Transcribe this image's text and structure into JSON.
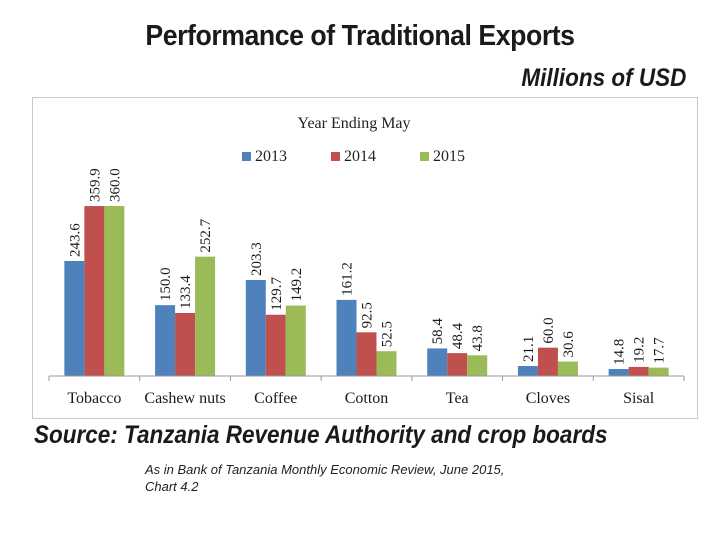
{
  "title": "Performance of Traditional Exports",
  "units": "Millions of USD",
  "source": {
    "label": "Source:",
    "text": "Tanzania Revenue Authority and crop boards"
  },
  "note": {
    "line1": "As in Bank of Tanzania Monthly Economic Review,  June 2015,",
    "line2": "Chart  4.2"
  },
  "colors": {
    "s2013": "#4f81bd",
    "s2014": "#c0504d",
    "s2015": "#9bbb59"
  },
  "chart_data": {
    "type": "bar",
    "title": "Year Ending May",
    "categories": [
      "Tobacco",
      "Cashew nuts",
      "Coffee",
      "Cotton",
      "Tea",
      "Cloves",
      "Sisal"
    ],
    "series": [
      {
        "name": "2013",
        "values": [
          243.6,
          150.0,
          203.3,
          161.2,
          58.4,
          21.1,
          14.8
        ],
        "labels": [
          "243.6",
          "150.0",
          "203.3",
          "161.2",
          "58.4",
          "21.1",
          "14.8"
        ]
      },
      {
        "name": "2014",
        "values": [
          359.9,
          133.4,
          129.7,
          92.5,
          48.4,
          60.0,
          19.2
        ],
        "labels": [
          "359.9",
          "133.4",
          "129.7",
          "92.5",
          "48.4",
          "60.0",
          "19.2"
        ]
      },
      {
        "name": "2015",
        "values": [
          360.0,
          252.7,
          149.2,
          52.5,
          43.8,
          30.6,
          17.7
        ],
        "labels": [
          "360.0",
          "252.7",
          "149.2",
          "52.5",
          "43.8",
          "30.6",
          "17.7"
        ]
      }
    ],
    "xlabel": "",
    "ylabel": "",
    "ylim": [
      0,
      360
    ],
    "legend": "top-center",
    "grid": false
  }
}
